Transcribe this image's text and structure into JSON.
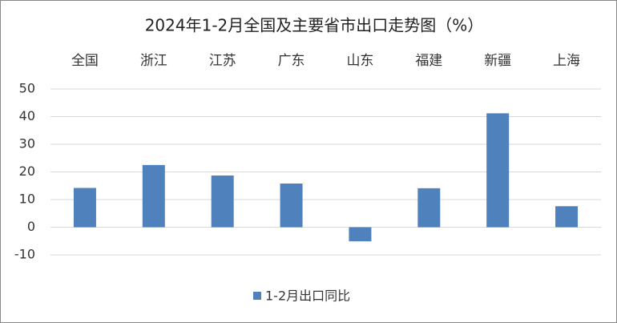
{
  "chart_data": {
    "type": "bar",
    "title": "2024年1-2月全国及主要省市出口走势图（%）",
    "categories": [
      "全国",
      "浙江",
      "江苏",
      "广东",
      "山东",
      "福建",
      "新疆",
      "上海"
    ],
    "series": [
      {
        "name": "1-2月出口同比",
        "color": "#4f81bd",
        "values": [
          14.2,
          22.5,
          18.7,
          15.8,
          -5.1,
          14.1,
          41.2,
          7.6
        ]
      }
    ],
    "ylim": [
      -10,
      50
    ],
    "yticks": [
      -10,
      0,
      10,
      20,
      30,
      40,
      50
    ],
    "grid": true,
    "legend": "bottom"
  }
}
